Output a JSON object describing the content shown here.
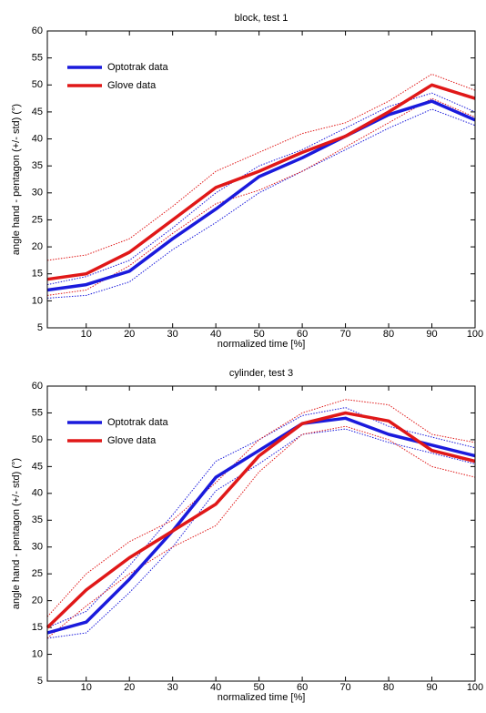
{
  "chart_data": [
    {
      "type": "line",
      "title": "block, test 1",
      "xlabel": "normalized time [%]",
      "ylabel": "angle hand - pentagon (+/- std) (°)",
      "x": [
        1,
        10,
        20,
        30,
        40,
        50,
        60,
        70,
        80,
        90,
        100
      ],
      "xlim": [
        1,
        100
      ],
      "xticks": [
        10,
        20,
        30,
        40,
        50,
        60,
        70,
        80,
        90,
        100
      ],
      "ylim": [
        5,
        60
      ],
      "yticks": [
        5,
        10,
        15,
        20,
        25,
        30,
        35,
        40,
        45,
        50,
        55,
        60
      ],
      "legend": "upper left",
      "series": [
        {
          "name": "Optotrak data",
          "color": "#1a1adc",
          "values": [
            12,
            13,
            15.5,
            21.5,
            27,
            33,
            36.5,
            40.5,
            44.5,
            47,
            43.5
          ],
          "upper": [
            13,
            14.5,
            17.5,
            23.5,
            30,
            35,
            38,
            42,
            46,
            48.5,
            45
          ],
          "lower": [
            10.5,
            11,
            13.5,
            19.5,
            24.5,
            30,
            34,
            38,
            42,
            45.5,
            42.5
          ]
        },
        {
          "name": "Glove data",
          "color": "#e01818",
          "values": [
            14,
            15,
            19,
            25,
            31,
            34,
            37.5,
            40.5,
            45,
            50,
            47.5
          ],
          "upper": [
            17.5,
            18.5,
            21.5,
            27.5,
            34,
            37.5,
            41,
            43,
            47,
            52,
            49
          ],
          "lower": [
            11,
            12,
            16.5,
            22.5,
            28,
            30.5,
            34,
            38.5,
            43,
            47.5,
            44
          ]
        }
      ]
    },
    {
      "type": "line",
      "title": "cylinder, test 3",
      "xlabel": "normalized time [%]",
      "ylabel": "angle hand - pentagon (+/- std) (°)",
      "x": [
        1,
        10,
        20,
        30,
        40,
        50,
        60,
        70,
        80,
        90,
        100
      ],
      "xlim": [
        1,
        100
      ],
      "xticks": [
        10,
        20,
        30,
        40,
        50,
        60,
        70,
        80,
        90,
        100
      ],
      "ylim": [
        5,
        60
      ],
      "yticks": [
        5,
        10,
        15,
        20,
        25,
        30,
        35,
        40,
        45,
        50,
        55,
        60
      ],
      "legend": "upper left",
      "series": [
        {
          "name": "Optotrak data",
          "color": "#1a1adc",
          "values": [
            14,
            16,
            24,
            33,
            43,
            48,
            53,
            54,
            51,
            49,
            47
          ],
          "upper": [
            15,
            18,
            26.5,
            36,
            46,
            50,
            54.5,
            56,
            52.5,
            50.5,
            48.5
          ],
          "lower": [
            13,
            14,
            21.5,
            30,
            40.5,
            45.5,
            51,
            52,
            49.5,
            47.5,
            45.5
          ]
        },
        {
          "name": "Glove data",
          "color": "#e01818",
          "values": [
            15,
            22,
            28,
            33,
            38,
            47,
            53,
            55,
            53.5,
            48,
            46
          ],
          "upper": [
            17,
            25,
            31,
            35,
            42,
            50,
            55,
            57.5,
            56.5,
            51,
            49.5
          ],
          "lower": [
            13,
            19,
            25,
            30,
            34,
            44,
            51,
            52.5,
            50,
            45,
            43
          ]
        }
      ]
    }
  ]
}
